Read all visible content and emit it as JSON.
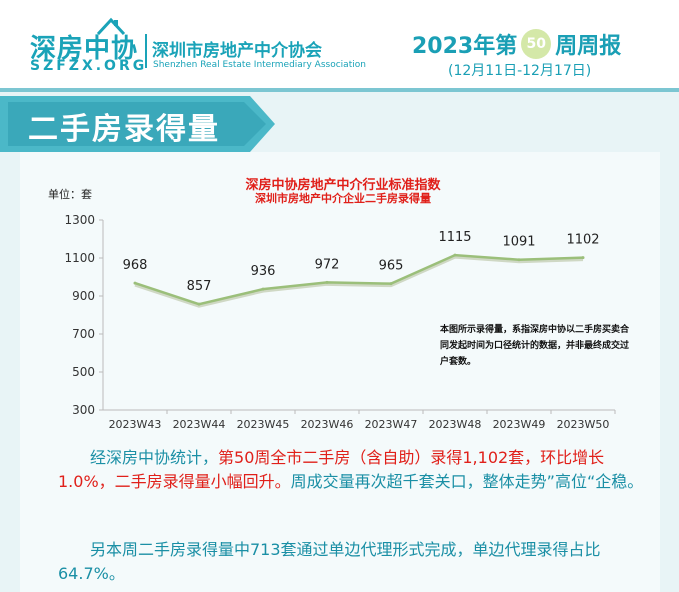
{
  "header": {
    "logo_text": "深房中协",
    "logo_url": "SZFZX.ORG",
    "org_name_cn": "深圳市房地产中介协会",
    "org_name_en": "Shenzhen Real Estate Intermediary Association",
    "week_prefix": "2023年第",
    "week_number": "50",
    "week_suffix": "周周报",
    "date_range": "(12月11日-12月17日)"
  },
  "section": {
    "title": "二手房录得量"
  },
  "chart_data": {
    "type": "line",
    "title": "深房中协房地产中介行业标准指数",
    "subtitle": "深圳市房地产中介企业二手房录得量",
    "unit_label": "单位：套",
    "categories": [
      "2023W43",
      "2023W44",
      "2023W45",
      "2023W46",
      "2023W47",
      "2023W48",
      "2023W49",
      "2023W50"
    ],
    "values": [
      968,
      857,
      936,
      972,
      965,
      1115,
      1091,
      1102
    ],
    "ylim": [
      300,
      1300
    ],
    "yticks": [
      300,
      500,
      700,
      900,
      1100,
      1300
    ],
    "grid": false,
    "line_color": "#9bbf7a",
    "annotation": "本图所示录得量，系指深房中协以二手房买卖合同发起时间为口径统计的数据，并非最终成交过户套数。"
  },
  "body": {
    "para1_a": "经深房中协统计，",
    "para1_b": "第50周全市二手房（含自助）录得1,102套，环比增长1.0%，二手房录得量小幅回升。",
    "para1_c": "周成交量再次超千套关口，整体走势”高位“企稳。",
    "para2": "另本周二手房录得量中713套通过单边代理形式完成，单边代理录得占比64.7%。"
  },
  "colors": {
    "accent": "#1a9fb5",
    "highlight": "#e0201a",
    "banner": "#4bb8c8"
  }
}
